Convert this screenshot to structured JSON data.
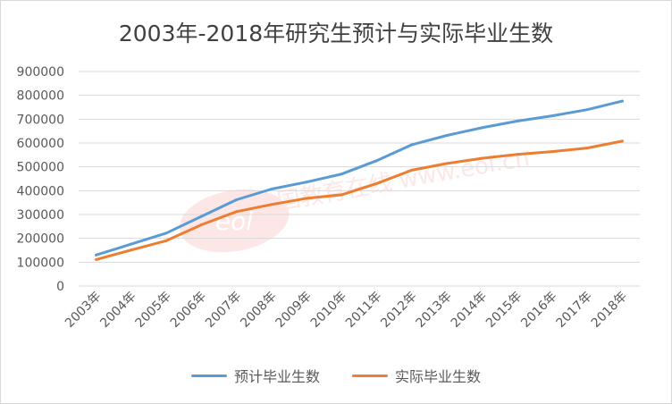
{
  "chart_data": {
    "type": "line",
    "title": "2003年-2018年研究生预计与实际毕业生数",
    "xlabel": "",
    "ylabel": "",
    "categories": [
      "2003年",
      "2004年",
      "2005年",
      "2006年",
      "2007年",
      "2008年",
      "2009年",
      "2010年",
      "2011年",
      "2012年",
      "2013年",
      "2014年",
      "2015年",
      "2016年",
      "2017年",
      "2018年"
    ],
    "ylim": [
      0,
      900000
    ],
    "yticks": [
      0,
      100000,
      200000,
      300000,
      400000,
      500000,
      600000,
      700000,
      800000,
      900000
    ],
    "ytick_labels": [
      "0",
      "100000",
      "200000",
      "300000",
      "400000",
      "500000",
      "600000",
      "700000",
      "800000",
      "900000"
    ],
    "grid": true,
    "legend_position": "bottom",
    "series": [
      {
        "name": "预计毕业生数",
        "color": "#5b9bd5",
        "values": [
          130000,
          176000,
          222000,
          292000,
          362000,
          407000,
          436000,
          470000,
          526000,
          593000,
          632000,
          664000,
          692000,
          714000,
          740000,
          776000
        ]
      },
      {
        "name": "实际毕业生数",
        "color": "#ed7d31",
        "values": [
          111000,
          151000,
          190000,
          257000,
          312000,
          342000,
          368000,
          383000,
          430000,
          486000,
          514000,
          536000,
          552000,
          564000,
          579000,
          608000
        ]
      }
    ]
  },
  "watermark": {
    "text": "中国教育在线 www.eol.cn"
  }
}
